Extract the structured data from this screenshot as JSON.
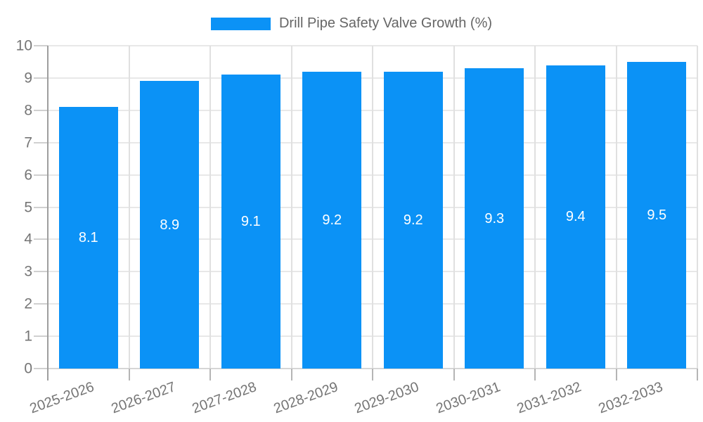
{
  "legend": {
    "label": "Drill Pipe Safety Valve Growth (%)"
  },
  "chart_data": {
    "type": "bar",
    "title": "",
    "xlabel": "",
    "ylabel": "",
    "categories": [
      "2025-2026",
      "2026-2027",
      "2027-2028",
      "2028-2029",
      "2029-2030",
      "2030-2031",
      "2031-2032",
      "2032-2033"
    ],
    "values": [
      8.1,
      8.9,
      9.1,
      9.2,
      9.2,
      9.3,
      9.4,
      9.5
    ],
    "series_name": "Drill Pipe Safety Valve Growth (%)",
    "ylim": [
      0,
      10
    ],
    "ytick_step": 1,
    "grid": true,
    "legend_position": "top-center",
    "value_label_position": "inside-center",
    "value_label_format": "1-decimal",
    "xtick_rotation_deg": 20,
    "colors": {
      "bar": "#0b92f6",
      "grid_horizontal": "#e8e8e8",
      "grid_vertical": "#e0e0e0",
      "axis_line": "#9e9e9e",
      "tick": "#b5b5b5",
      "tick_label": "#757575",
      "legend_text": "#666666",
      "value_label": "#ffffff",
      "background": "#ffffff"
    }
  }
}
